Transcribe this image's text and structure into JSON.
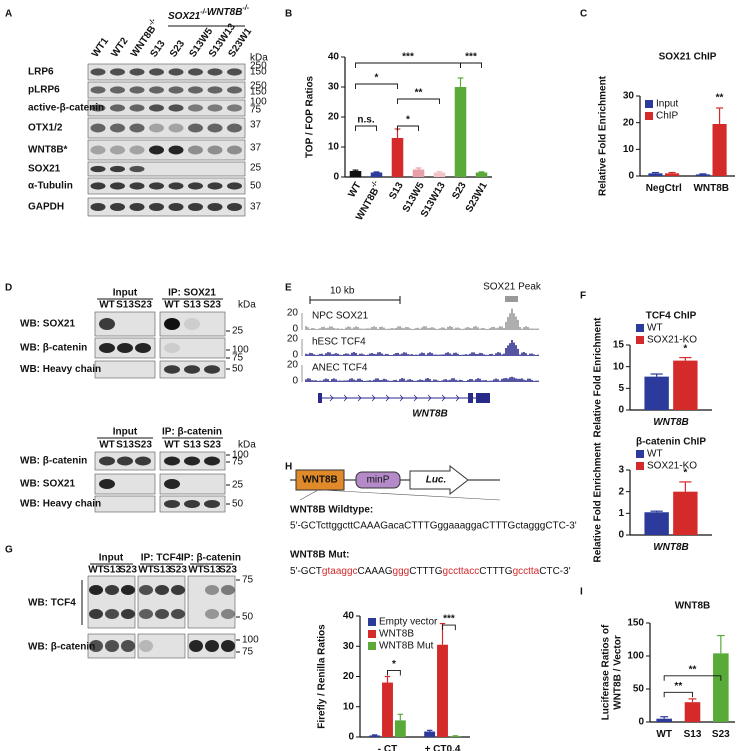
{
  "panel_labels": [
    "A",
    "B",
    "C",
    "D",
    "E",
    "F",
    "G",
    "H",
    "I"
  ],
  "panel_a": {
    "header": [
      {
        "text": "SOX21",
        "sup": "-/-"
      },
      {
        "text": "WNT8B",
        "sup": "-/-"
      }
    ],
    "lanes": [
      "WT1",
      "WT2",
      {
        "text": "WNT8B",
        "sup": "-/-"
      },
      "S13",
      "S23",
      "S13W5",
      "S13W13",
      "S23W1"
    ],
    "rows": [
      "LRP6",
      "pLRP6",
      "active-β-catenin",
      "OTX1/2",
      "WNT8B*",
      "SOX21",
      "α-Tubulin",
      "GAPDH"
    ],
    "kda_unit": "kDa",
    "markers": [
      250,
      150,
      250,
      150,
      100,
      75,
      37,
      37,
      25,
      50,
      37
    ]
  },
  "panel_d": {
    "kda_unit": "kDa",
    "blots": [
      {
        "headers": [
          "Input",
          "IP: SOX21"
        ],
        "lanes": [
          "WT",
          "S13",
          "S23",
          "WT",
          "S13",
          "S23"
        ],
        "rows": [
          "WB: SOX21",
          "WB: β-catenin",
          "WB: Heavy chain"
        ],
        "markers": [
          25,
          100,
          75,
          50
        ]
      },
      {
        "headers": [
          "Input",
          "IP: β-catenin"
        ],
        "lanes": [
          "WT",
          "S13",
          "S23",
          "WT",
          "S13",
          "S23"
        ],
        "rows": [
          "WB: β-catenin",
          "WB: SOX21",
          "WB: Heavy chain"
        ],
        "markers": [
          100,
          75,
          25,
          50
        ]
      }
    ]
  },
  "panel_e": {
    "scale": "10 kb",
    "peak": "SOX21 Peak",
    "gene": "WNT8B",
    "tracks": [
      {
        "name": "NPC SOX21",
        "max": 20,
        "min": 0
      },
      {
        "name": "hESC TCF4",
        "max": 20,
        "min": 0
      },
      {
        "name": "ANEC TCF4",
        "max": 20,
        "min": 0
      }
    ]
  },
  "panel_g": {
    "headers": [
      "Input",
      "IP: TCF4",
      "IP: β-catenin"
    ],
    "lanes": [
      "WT",
      "S13",
      "S23",
      "WT",
      "S13",
      "S23",
      "WT",
      "S13",
      "S23"
    ],
    "rows": [
      "WB: TCF4",
      "WB: β-catenin"
    ],
    "markers": [
      75,
      50,
      100,
      75
    ]
  },
  "panel_h": {
    "construct": [
      "WNT8B",
      "minP",
      "Luc."
    ],
    "wildtype_label": "WNT8B Wildtype:",
    "wildtype_seq": "5'-GCTcttggcttCAAAGacaCTTTGggaaaggaCTTTGctagggCTC-3'",
    "mut_label": "WNT8B Mut:",
    "mut_seq": [
      {
        "text": "5'-GCT"
      },
      {
        "text": "gtaaggc",
        "mutated": true
      },
      {
        "text": "CAAAG"
      },
      {
        "text": "ggg",
        "mutated": true
      },
      {
        "text": "CTTTG"
      },
      {
        "text": "gccttacc",
        "mutated": true
      },
      {
        "text": "CTTTG"
      },
      {
        "text": "gcctta",
        "mutated": true
      },
      {
        "text": "CTC-3'"
      }
    ]
  },
  "chart_data": [
    {
      "type": "bar",
      "ylabel": "TOP / FOP Ratios",
      "categories": [
        "WT",
        {
          "text": "WNT8B",
          "sup": "-/-"
        },
        "S13",
        "S13W5",
        "S13W13",
        "S23",
        "S23W1"
      ],
      "values": [
        2,
        1.5,
        13,
        2.5,
        1.5,
        30,
        1.5
      ],
      "errors": [
        0.3,
        0.2,
        3,
        0.5,
        0.3,
        3,
        0.2
      ],
      "colors": [
        "#111111",
        "#2b3a9b",
        "#d42a2a",
        "#e8a0a8",
        "#f2c4c8",
        "#5aaa3a",
        "#5aaa3a"
      ],
      "ylim": [
        0,
        40
      ],
      "yticks": [
        0,
        10,
        20,
        30,
        40
      ],
      "annotations": [
        "***",
        "*",
        "**",
        "n.s.",
        "*",
        "***"
      ]
    },
    {
      "type": "grouped_bar",
      "title": "SOX21 ChIP",
      "ylabel": "Relative Fold Enrichment",
      "categories": [
        "NegCtrl",
        "WNT8B"
      ],
      "series": [
        {
          "name": "Input",
          "color": "#2b3a9b",
          "values": [
            1,
            0.6
          ],
          "errors": [
            0.3,
            0.2
          ]
        },
        {
          "name": "ChIP",
          "color": "#d42a2a",
          "values": [
            1,
            19.5
          ],
          "errors": [
            0.3,
            6
          ]
        }
      ],
      "ylim": [
        0,
        30
      ],
      "yticks": [
        0,
        10,
        20,
        30
      ],
      "annotations": [
        "**"
      ]
    },
    {
      "type": "grouped_bar",
      "title": "TCF4 ChIP",
      "ylabel": "Relative Fold Enrichment",
      "categories": [
        "WNT8B"
      ],
      "series": [
        {
          "name": "WT",
          "color": "#2b3a9b",
          "values": [
            7.7
          ],
          "errors": [
            0.6
          ]
        },
        {
          "name": "SOX21-KO",
          "color": "#d42a2a",
          "values": [
            11.4
          ],
          "errors": [
            0.7
          ]
        }
      ],
      "ylim": [
        0,
        15
      ],
      "yticks": [
        0,
        5,
        10,
        15
      ],
      "annotations": [
        "*"
      ]
    },
    {
      "type": "grouped_bar",
      "title": "β-catenin ChIP",
      "ylabel": "Relative Fold Enrichment",
      "categories": [
        "WNT8B"
      ],
      "series": [
        {
          "name": "WT",
          "color": "#2b3a9b",
          "values": [
            1.05
          ],
          "errors": [
            0.05
          ]
        },
        {
          "name": "SOX21-KO",
          "color": "#d42a2a",
          "values": [
            2
          ],
          "errors": [
            0.45
          ]
        }
      ],
      "ylim": [
        0,
        3
      ],
      "yticks": [
        0,
        1,
        2,
        3
      ],
      "annotations": [
        "*"
      ]
    },
    {
      "type": "grouped_bar",
      "ylabel": "Firefly / Renilla Ratios",
      "categories": [
        "- CT",
        "+ CT0.4"
      ],
      "series": [
        {
          "name": "Empty vector",
          "color": "#2b3a9b",
          "values": [
            0.5,
            1.8
          ],
          "errors": [
            0.2,
            0.4
          ]
        },
        {
          "name": "WNT8B",
          "color": "#d42a2a",
          "values": [
            18,
            30.5
          ],
          "errors": [
            2,
            7
          ]
        },
        {
          "name": "WNT8B Mut",
          "color": "#5aaa3a",
          "values": [
            5.5,
            0.3
          ],
          "errors": [
            2,
            0.1
          ]
        }
      ],
      "ylim": [
        0,
        40
      ],
      "yticks": [
        0,
        10,
        20,
        30,
        40
      ],
      "annotations": [
        "*",
        "***"
      ]
    },
    {
      "type": "bar",
      "title": "WNT8B",
      "ylabel": [
        "Luciferase Ratios of",
        "WNT8B / Vector"
      ],
      "categories": [
        "WT",
        "S13",
        "S23"
      ],
      "values": [
        5,
        30,
        104
      ],
      "errors": [
        3,
        5,
        27
      ],
      "colors": [
        "#2b3a9b",
        "#d42a2a",
        "#5aaa3a"
      ],
      "ylim": [
        0,
        150
      ],
      "yticks": [
        0,
        50,
        100,
        150
      ],
      "annotations": [
        "**",
        "**"
      ]
    }
  ]
}
